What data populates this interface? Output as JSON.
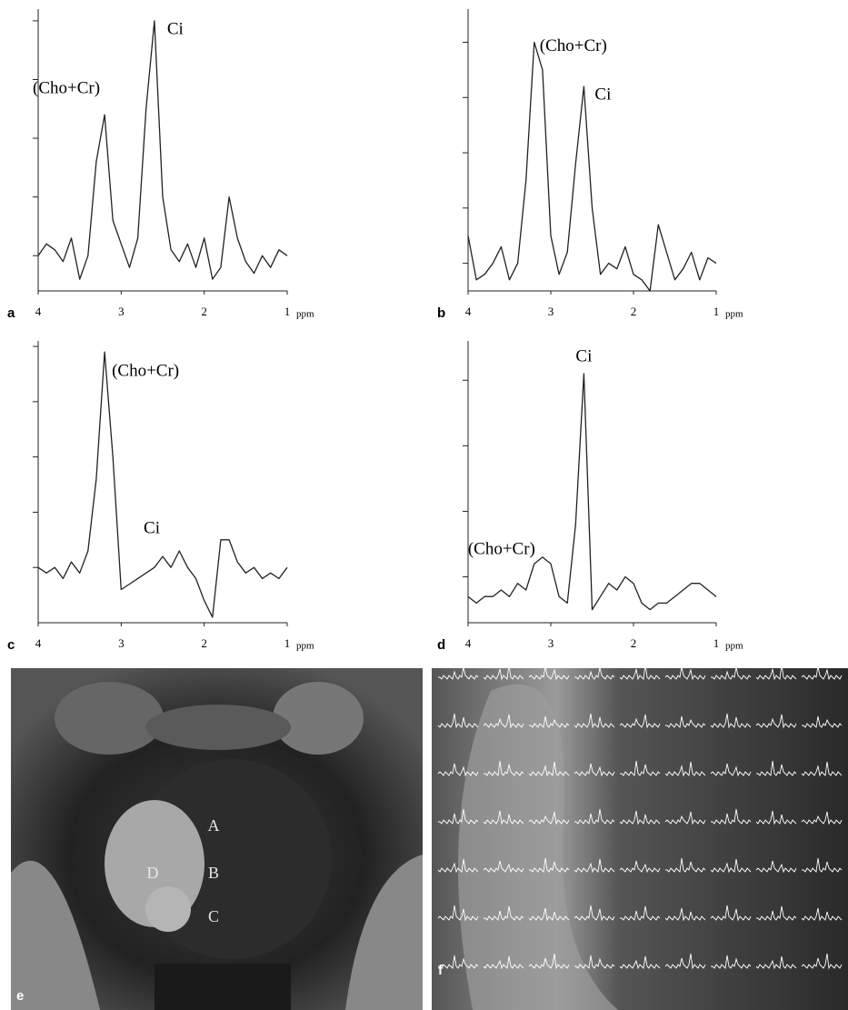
{
  "chart_data": [
    {
      "type": "line",
      "panel": "a",
      "xlabel": "ppm",
      "xlim": [
        4,
        1
      ],
      "xticks": [
        4,
        3,
        2,
        1
      ],
      "ylim": [
        0.4,
        5.2
      ],
      "yticks": [
        1,
        2,
        3,
        4,
        5
      ],
      "color": "#222222",
      "x": [
        4.0,
        3.9,
        3.8,
        3.7,
        3.6,
        3.5,
        3.4,
        3.3,
        3.2,
        3.1,
        3.0,
        2.9,
        2.8,
        2.7,
        2.6,
        2.5,
        2.4,
        2.3,
        2.2,
        2.1,
        2.0,
        1.9,
        1.8,
        1.7,
        1.6,
        1.5,
        1.4,
        1.3,
        1.2,
        1.1,
        1.0
      ],
      "values": [
        1.0,
        1.2,
        1.1,
        0.9,
        1.3,
        0.6,
        1.0,
        2.6,
        3.4,
        1.6,
        1.2,
        0.8,
        1.3,
        3.5,
        5.0,
        2.0,
        1.1,
        0.9,
        1.2,
        0.8,
        1.3,
        0.6,
        0.8,
        2.0,
        1.3,
        0.9,
        0.7,
        1.0,
        0.8,
        1.1,
        1.0
      ],
      "annotations": [
        {
          "text": "(Cho+Cr)",
          "x": 3.2
        },
        {
          "text": "Ci",
          "x": 2.6
        }
      ]
    },
    {
      "type": "line",
      "panel": "b",
      "xlabel": "ppm",
      "xlim": [
        4,
        1
      ],
      "xticks": [
        4,
        3,
        2,
        1
      ],
      "ylim": [
        0.5,
        5.6
      ],
      "yticks": [
        1,
        2,
        3,
        4,
        5
      ],
      "color": "#222222",
      "x": [
        4.0,
        3.9,
        3.8,
        3.7,
        3.6,
        3.5,
        3.4,
        3.3,
        3.2,
        3.1,
        3.0,
        2.9,
        2.8,
        2.7,
        2.6,
        2.5,
        2.4,
        2.3,
        2.2,
        2.1,
        2.0,
        1.9,
        1.8,
        1.7,
        1.6,
        1.5,
        1.4,
        1.3,
        1.2,
        1.1,
        1.0
      ],
      "values": [
        1.5,
        0.7,
        0.8,
        1.0,
        1.3,
        0.7,
        1.0,
        2.5,
        5.0,
        4.5,
        1.5,
        0.8,
        1.2,
        2.8,
        4.2,
        2.0,
        0.8,
        1.0,
        0.9,
        1.3,
        0.8,
        0.7,
        0.5,
        1.7,
        1.2,
        0.7,
        0.9,
        1.2,
        0.7,
        1.1,
        1.0
      ],
      "annotations": [
        {
          "text": "(Cho+Cr)",
          "x": 3.2
        },
        {
          "text": "Ci",
          "x": 2.6
        }
      ]
    },
    {
      "type": "line",
      "panel": "c",
      "xlabel": "ppm",
      "xlim": [
        4,
        1
      ],
      "xticks": [
        4,
        3,
        2,
        1
      ],
      "ylim": [
        0,
        5.1
      ],
      "yticks": [
        1,
        2,
        3,
        4,
        5
      ],
      "color": "#222222",
      "x": [
        4.0,
        3.9,
        3.8,
        3.7,
        3.6,
        3.5,
        3.4,
        3.3,
        3.2,
        3.1,
        3.0,
        2.9,
        2.8,
        2.7,
        2.6,
        2.5,
        2.4,
        2.3,
        2.2,
        2.1,
        2.0,
        1.9,
        1.8,
        1.7,
        1.6,
        1.5,
        1.4,
        1.3,
        1.2,
        1.1,
        1.0
      ],
      "values": [
        1.0,
        0.9,
        1.0,
        0.8,
        1.1,
        0.9,
        1.3,
        2.6,
        4.9,
        3.0,
        0.6,
        0.7,
        0.8,
        0.9,
        1.0,
        1.2,
        1.0,
        1.3,
        1.0,
        0.8,
        0.4,
        0.1,
        1.5,
        1.5,
        1.1,
        0.9,
        1.0,
        0.8,
        0.9,
        0.8,
        1.0
      ],
      "annotations": [
        {
          "text": "(Cho+Cr)",
          "x": 3.2
        },
        {
          "text": "Ci",
          "x": 2.5
        }
      ]
    },
    {
      "type": "line",
      "panel": "d",
      "xlabel": "ppm",
      "xlim": [
        4,
        1
      ],
      "xticks": [
        4,
        3,
        2,
        1
      ],
      "ylim": [
        0.3,
        4.6
      ],
      "yticks": [
        1,
        2,
        3,
        4
      ],
      "color": "#222222",
      "x": [
        4.0,
        3.9,
        3.8,
        3.7,
        3.6,
        3.5,
        3.4,
        3.3,
        3.2,
        3.1,
        3.0,
        2.9,
        2.8,
        2.7,
        2.6,
        2.5,
        2.4,
        2.3,
        2.2,
        2.1,
        2.0,
        1.9,
        1.8,
        1.7,
        1.6,
        1.5,
        1.4,
        1.3,
        1.2,
        1.1,
        1.0
      ],
      "values": [
        0.7,
        0.6,
        0.7,
        0.7,
        0.8,
        0.7,
        0.9,
        0.8,
        1.2,
        1.3,
        1.2,
        0.7,
        0.6,
        1.8,
        4.1,
        0.5,
        0.7,
        0.9,
        0.8,
        1.0,
        0.9,
        0.6,
        0.5,
        0.6,
        0.6,
        0.7,
        0.8,
        0.9,
        0.9,
        0.8,
        0.7
      ],
      "annotations": [
        {
          "text": "(Cho+Cr)",
          "x": 3.1
        },
        {
          "text": "Ci",
          "x": 2.6
        }
      ]
    }
  ],
  "images": [
    {
      "panel": "e",
      "labels": [
        "A",
        "B",
        "C",
        "D"
      ]
    },
    {
      "panel": "f"
    }
  ]
}
